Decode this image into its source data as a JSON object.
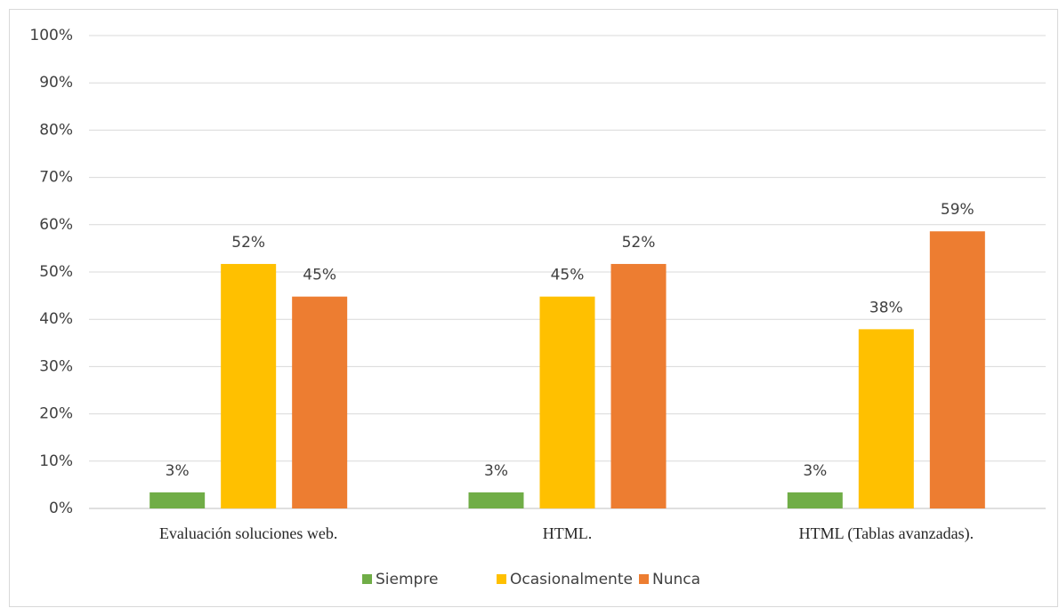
{
  "chart_data": {
    "type": "bar",
    "categories": [
      "Evaluación soluciones web.",
      "HTML.",
      "HTML (Tablas avanzadas)."
    ],
    "series": [
      {
        "name": "Siempre",
        "color": "#70ad47",
        "values": [
          3.4,
          3.4,
          3.4
        ],
        "value_labels": [
          "3%",
          "3%",
          "3%"
        ]
      },
      {
        "name": "Ocasionalmente",
        "color": "#ffc000",
        "values": [
          51.7,
          44.8,
          37.9
        ],
        "value_labels": [
          "52%",
          "45%",
          "38%"
        ]
      },
      {
        "name": "Nunca",
        "color": "#ed7d31",
        "values": [
          44.8,
          51.7,
          58.6
        ],
        "value_labels": [
          "45%",
          "52%",
          "59%"
        ]
      }
    ],
    "ylim": [
      0,
      100
    ],
    "yticks": [
      {
        "value": 0,
        "label": "0%"
      },
      {
        "value": 10,
        "label": "10%"
      },
      {
        "value": 20,
        "label": "20%"
      },
      {
        "value": 30,
        "label": "30%"
      },
      {
        "value": 40,
        "label": "40%"
      },
      {
        "value": 50,
        "label": "50%"
      },
      {
        "value": 60,
        "label": "60%"
      },
      {
        "value": 70,
        "label": "70%"
      },
      {
        "value": 80,
        "label": "80%"
      },
      {
        "value": 90,
        "label": "90%"
      },
      {
        "value": 100,
        "label": "100%"
      }
    ],
    "grid": true,
    "legend": "bottom"
  }
}
